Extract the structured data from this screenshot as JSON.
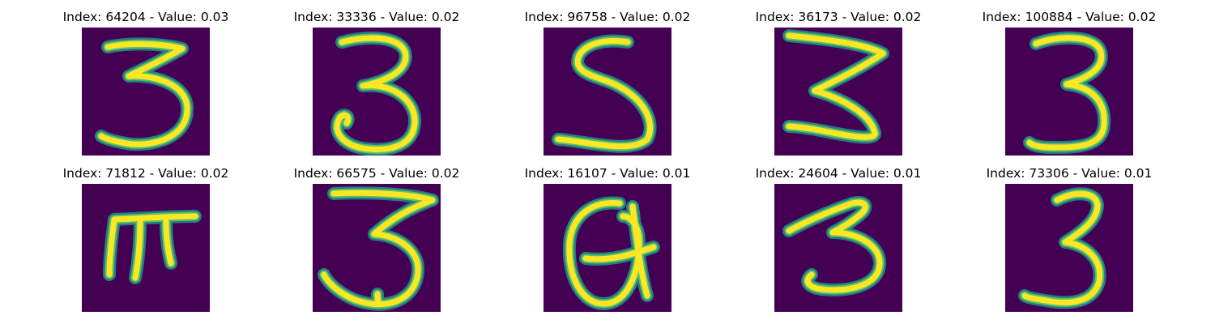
{
  "chart_data": {
    "type": "image-grid",
    "colormap": "viridis",
    "colors": {
      "background": "#440154",
      "edge": "#21918c",
      "mid": "#5ec962",
      "stroke": "#fde725"
    },
    "panels": [
      {
        "title": "Index: 64204 - Value: 0.03",
        "index": 64204,
        "value": 0.03,
        "glyph": "3"
      },
      {
        "title": "Index: 33336 - Value: 0.02",
        "index": 33336,
        "value": 0.02,
        "glyph": "3"
      },
      {
        "title": "Index: 96758 - Value: 0.02",
        "index": 96758,
        "value": 0.02,
        "glyph": "5"
      },
      {
        "title": "Index: 36173 - Value: 0.02",
        "index": 36173,
        "value": 0.02,
        "glyph": "3"
      },
      {
        "title": "Index: 100884 - Value: 0.02",
        "index": 100884,
        "value": 0.02,
        "glyph": "3"
      },
      {
        "title": "Index: 71812 - Value: 0.02",
        "index": 71812,
        "value": 0.02,
        "glyph": "m"
      },
      {
        "title": "Index: 66575 - Value: 0.02",
        "index": 66575,
        "value": 0.02,
        "glyph": "3"
      },
      {
        "title": "Index: 16107 - Value: 0.01",
        "index": 16107,
        "value": 0.01,
        "glyph": "a"
      },
      {
        "title": "Index: 24604 - Value: 0.01",
        "index": 24604,
        "value": 0.01,
        "glyph": "3"
      },
      {
        "title": "Index: 73306 - Value: 0.01",
        "index": 73306,
        "value": 0.01,
        "glyph": "3"
      }
    ]
  }
}
